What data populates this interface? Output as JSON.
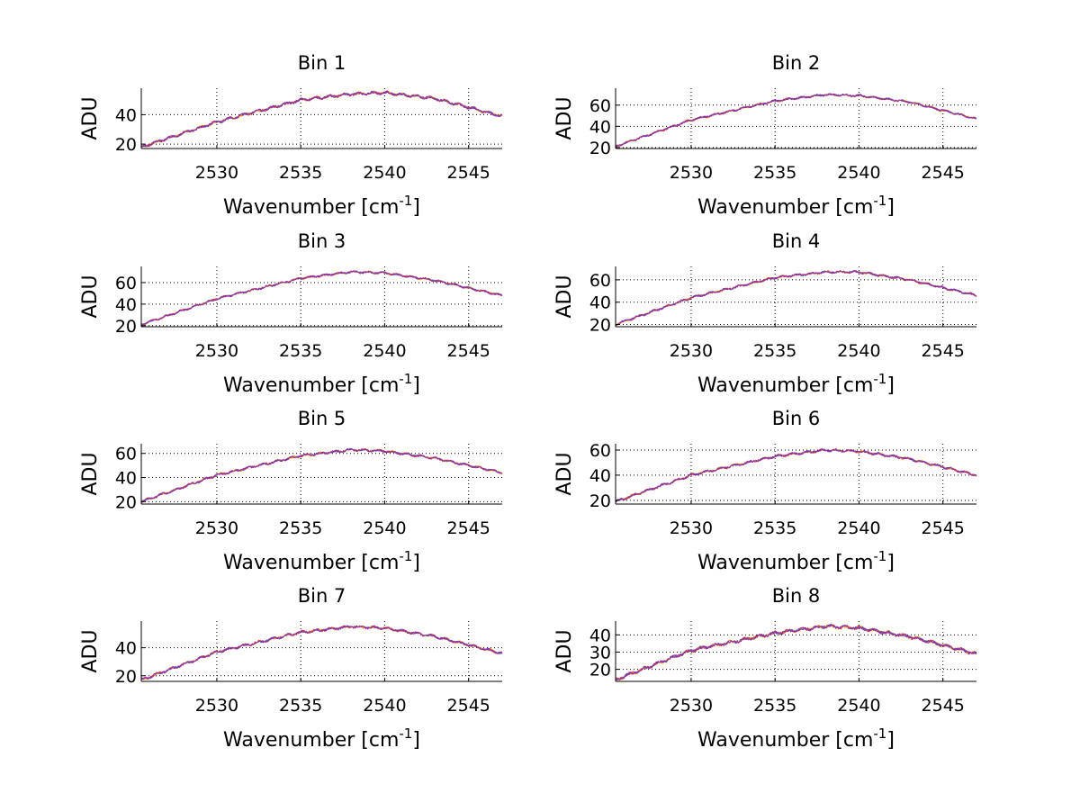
{
  "chart_data": [
    {
      "type": "line",
      "title": "Bin 1",
      "xlabel": "Wavenumber [cm",
      "xlabel_superscript": "-1",
      "xlabel_suffix": "]",
      "ylabel": "ADU",
      "xlim": [
        2525.5,
        2547
      ],
      "ylim": [
        17,
        58
      ],
      "xticks": [
        2530,
        2535,
        2540,
        2545
      ],
      "yticks": [
        20,
        40
      ],
      "grid": true,
      "curve": {
        "x": [
          2525.5,
          2530,
          2535,
          2538,
          2540,
          2543,
          2547
        ],
        "y": [
          18,
          35,
          50,
          54,
          55,
          51,
          39
        ]
      },
      "series": [
        {
          "name": "red",
          "color": "#ff0000"
        },
        {
          "name": "orange",
          "color": "#ff9900"
        },
        {
          "name": "blue",
          "color": "#3333cc"
        },
        {
          "name": "purple",
          "color": "#993399"
        }
      ]
    },
    {
      "type": "line",
      "title": "Bin 2",
      "xlabel": "Wavenumber [cm",
      "xlabel_superscript": "-1",
      "xlabel_suffix": "]",
      "ylabel": "ADU",
      "xlim": [
        2525.5,
        2547
      ],
      "ylim": [
        19,
        76
      ],
      "xticks": [
        2530,
        2535,
        2540,
        2545
      ],
      "yticks": [
        20,
        40,
        60
      ],
      "grid": true,
      "curve": {
        "x": [
          2525.5,
          2530,
          2535,
          2538,
          2540,
          2543,
          2547
        ],
        "y": [
          21,
          46,
          64,
          70,
          69,
          63,
          47
        ]
      },
      "series": [
        {
          "name": "red",
          "color": "#ff0000"
        },
        {
          "name": "orange",
          "color": "#ff9900"
        },
        {
          "name": "blue",
          "color": "#3333cc"
        },
        {
          "name": "purple",
          "color": "#993399"
        }
      ]
    },
    {
      "type": "line",
      "title": "Bin 3",
      "xlabel": "Wavenumber [cm",
      "xlabel_superscript": "-1",
      "xlabel_suffix": "]",
      "ylabel": "ADU",
      "xlim": [
        2525.5,
        2547
      ],
      "ylim": [
        19,
        75
      ],
      "xticks": [
        2530,
        2535,
        2540,
        2545
      ],
      "yticks": [
        20,
        40,
        60
      ],
      "grid": true,
      "curve": {
        "x": [
          2525.5,
          2530,
          2535,
          2538,
          2540,
          2543,
          2547
        ],
        "y": [
          21,
          45,
          64,
          70,
          69,
          62,
          48
        ]
      },
      "series": [
        {
          "name": "red",
          "color": "#ff0000"
        },
        {
          "name": "orange",
          "color": "#ff9900"
        },
        {
          "name": "blue",
          "color": "#3333cc"
        },
        {
          "name": "purple",
          "color": "#993399"
        }
      ]
    },
    {
      "type": "line",
      "title": "Bin 4",
      "xlabel": "Wavenumber [cm",
      "xlabel_superscript": "-1",
      "xlabel_suffix": "]",
      "ylabel": "ADU",
      "xlim": [
        2525.5,
        2547
      ],
      "ylim": [
        18,
        72
      ],
      "xticks": [
        2530,
        2535,
        2540,
        2545
      ],
      "yticks": [
        20,
        40,
        60
      ],
      "grid": true,
      "curve": {
        "x": [
          2525.5,
          2530,
          2535,
          2538,
          2540,
          2543,
          2547
        ],
        "y": [
          20,
          44,
          62,
          67,
          67,
          60,
          46
        ]
      },
      "series": [
        {
          "name": "red",
          "color": "#ff0000"
        },
        {
          "name": "orange",
          "color": "#ff9900"
        },
        {
          "name": "blue",
          "color": "#3333cc"
        },
        {
          "name": "purple",
          "color": "#993399"
        }
      ]
    },
    {
      "type": "line",
      "title": "Bin 5",
      "xlabel": "Wavenumber [cm",
      "xlabel_superscript": "-1",
      "xlabel_suffix": "]",
      "ylabel": "ADU",
      "xlim": [
        2525.5,
        2547
      ],
      "ylim": [
        18,
        68
      ],
      "xticks": [
        2530,
        2535,
        2540,
        2545
      ],
      "yticks": [
        20,
        40,
        60
      ],
      "grid": true,
      "curve": {
        "x": [
          2525.5,
          2530,
          2535,
          2538,
          2540,
          2543,
          2547
        ],
        "y": [
          20,
          42,
          58,
          63,
          62,
          56,
          44
        ]
      },
      "series": [
        {
          "name": "red",
          "color": "#ff0000"
        },
        {
          "name": "orange",
          "color": "#ff9900"
        },
        {
          "name": "blue",
          "color": "#3333cc"
        },
        {
          "name": "purple",
          "color": "#993399"
        }
      ]
    },
    {
      "type": "line",
      "title": "Bin 6",
      "xlabel": "Wavenumber [cm",
      "xlabel_superscript": "-1",
      "xlabel_suffix": "]",
      "ylabel": "ADU",
      "xlim": [
        2525.5,
        2547
      ],
      "ylim": [
        17,
        65
      ],
      "xticks": [
        2530,
        2535,
        2540,
        2545
      ],
      "yticks": [
        20,
        40,
        60
      ],
      "grid": true,
      "curve": {
        "x": [
          2525.5,
          2530,
          2535,
          2538,
          2540,
          2543,
          2547
        ],
        "y": [
          19,
          40,
          55,
          60,
          59,
          53,
          40
        ]
      },
      "series": [
        {
          "name": "red",
          "color": "#ff0000"
        },
        {
          "name": "orange",
          "color": "#ff9900"
        },
        {
          "name": "blue",
          "color": "#3333cc"
        },
        {
          "name": "purple",
          "color": "#993399"
        }
      ]
    },
    {
      "type": "line",
      "title": "Bin 7",
      "xlabel": "Wavenumber [cm",
      "xlabel_superscript": "-1",
      "xlabel_suffix": "]",
      "ylabel": "ADU",
      "xlim": [
        2525.5,
        2547
      ],
      "ylim": [
        16,
        59
      ],
      "xticks": [
        2530,
        2535,
        2540,
        2545
      ],
      "yticks": [
        20,
        40
      ],
      "grid": true,
      "curve": {
        "x": [
          2525.5,
          2530,
          2535,
          2538,
          2540,
          2543,
          2547
        ],
        "y": [
          17,
          37,
          51,
          55,
          54,
          48,
          36
        ]
      },
      "series": [
        {
          "name": "red",
          "color": "#ff0000"
        },
        {
          "name": "orange",
          "color": "#ff9900"
        },
        {
          "name": "blue",
          "color": "#3333cc"
        },
        {
          "name": "purple",
          "color": "#993399"
        }
      ]
    },
    {
      "type": "line",
      "title": "Bin 8",
      "xlabel": "Wavenumber [cm",
      "xlabel_superscript": "-1",
      "xlabel_suffix": "]",
      "ylabel": "ADU",
      "xlim": [
        2525.5,
        2547
      ],
      "ylim": [
        13,
        48
      ],
      "xticks": [
        2530,
        2535,
        2540,
        2545
      ],
      "yticks": [
        20,
        30,
        40
      ],
      "grid": true,
      "curve": {
        "x": [
          2525.5,
          2530,
          2535,
          2538,
          2540,
          2543,
          2547
        ],
        "y": [
          14,
          31,
          41,
          45,
          44,
          39,
          29
        ]
      },
      "series": [
        {
          "name": "red",
          "color": "#ff0000"
        },
        {
          "name": "orange",
          "color": "#ff9900"
        },
        {
          "name": "blue",
          "color": "#3333cc"
        },
        {
          "name": "purple",
          "color": "#993399"
        }
      ]
    }
  ]
}
